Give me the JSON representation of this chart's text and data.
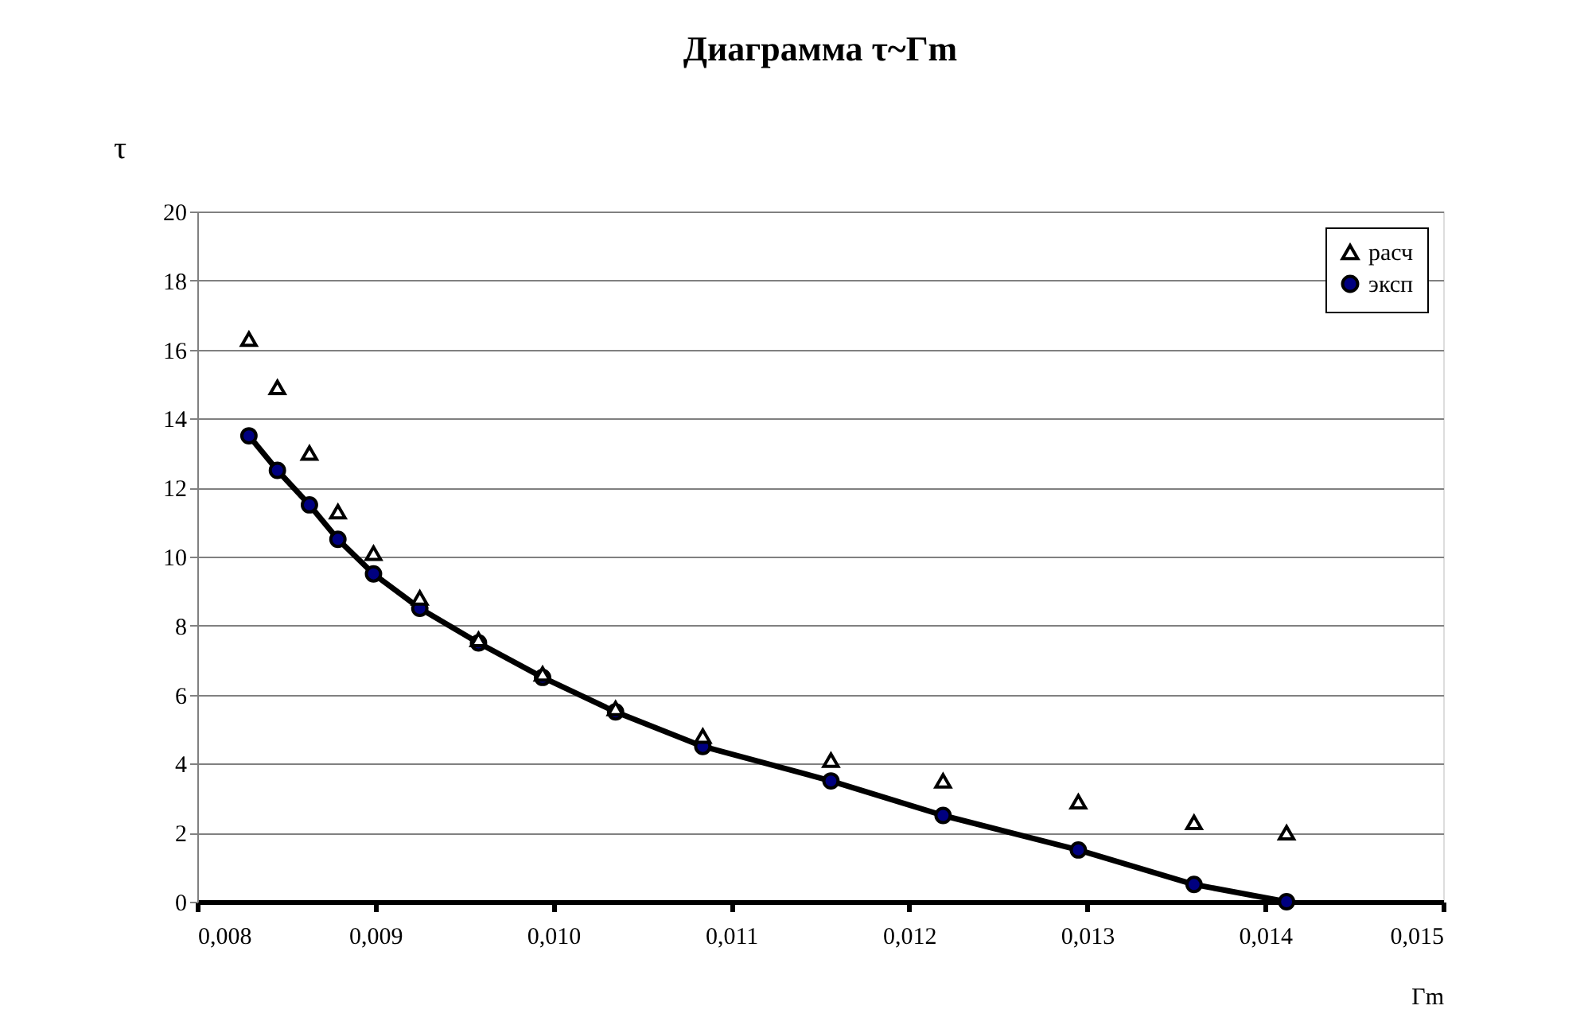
{
  "chart_data": {
    "type": "line",
    "title": "Диаграмма τ~Гm",
    "xlabel": "Гm",
    "ylabel": "τ",
    "xlim": [
      0.008,
      0.015
    ],
    "xticks": [
      {
        "value": 0.008,
        "label": "0,008"
      },
      {
        "value": 0.009,
        "label": "0,009"
      },
      {
        "value": 0.01,
        "label": "0,010"
      },
      {
        "value": 0.011,
        "label": "0,011"
      },
      {
        "value": 0.012,
        "label": "0,012"
      },
      {
        "value": 0.013,
        "label": "0,013"
      },
      {
        "value": 0.014,
        "label": "0,014"
      },
      {
        "value": 0.015,
        "label": "0,015"
      }
    ],
    "ylim": [
      0,
      20
    ],
    "yticks": [
      0,
      2,
      4,
      6,
      8,
      10,
      12,
      14,
      16,
      18,
      20
    ],
    "grid": "y",
    "legend": "top right",
    "series": [
      {
        "name": "расч",
        "type": "scatter",
        "marker": "triangle",
        "color": "#000000",
        "x": [
          0.00829,
          0.00845,
          0.00863,
          0.00879,
          0.00899,
          0.00925,
          0.00958,
          0.00994,
          0.01035,
          0.01084,
          0.01156,
          0.01219,
          0.01295,
          0.0136,
          0.01412
        ],
        "values": [
          16.3,
          14.9,
          13.0,
          11.3,
          10.1,
          8.8,
          7.6,
          6.6,
          5.6,
          4.8,
          4.1,
          3.5,
          2.9,
          2.3,
          2.0
        ]
      },
      {
        "name": "эксп",
        "marker": "circle",
        "line_style": "solid",
        "color": "#000080",
        "x": [
          0.00829,
          0.00845,
          0.00863,
          0.00879,
          0.00899,
          0.00925,
          0.00958,
          0.00994,
          0.01035,
          0.01084,
          0.01156,
          0.01219,
          0.01295,
          0.0136,
          0.01412
        ],
        "values": [
          13.5,
          12.5,
          11.5,
          10.5,
          9.5,
          8.5,
          7.5,
          6.5,
          5.5,
          4.5,
          3.5,
          2.5,
          1.5,
          0.5,
          0.0
        ]
      }
    ]
  }
}
